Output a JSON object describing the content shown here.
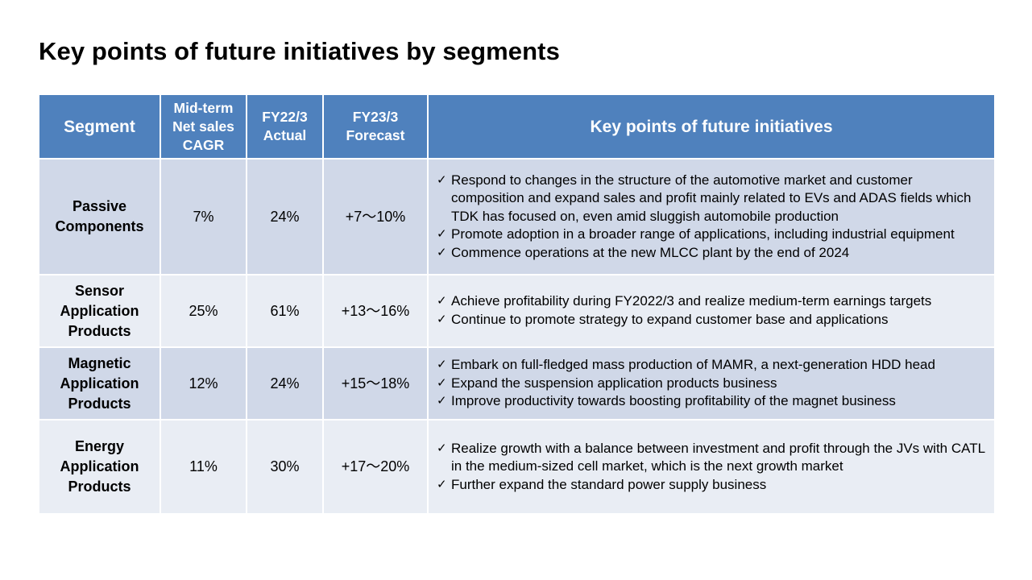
{
  "title": "Key points of future initiatives by segments",
  "table": {
    "headers": {
      "segment": "Segment",
      "cagr": [
        "Mid-term",
        "Net sales",
        "CAGR"
      ],
      "actual": [
        "FY22/3",
        "Actual"
      ],
      "forecast": [
        "FY23/3",
        "Forecast"
      ],
      "initiatives": "Key points of future initiatives"
    },
    "rows": [
      {
        "segment": [
          "Passive",
          "Components"
        ],
        "cagr": "7%",
        "actual": "24%",
        "forecast": "+7～10%",
        "points": [
          "Respond to changes in the structure of the automotive market and customer composition and expand sales and profit mainly related to EVs and ADAS fields which TDK has focused on, even amid sluggish automobile production",
          "Promote adoption in a broader range of applications, including industrial equipment",
          "Commence operations at the new MLCC plant by the end of 2024"
        ]
      },
      {
        "segment": [
          "Sensor",
          "Application",
          "Products"
        ],
        "cagr": "25%",
        "actual": "61%",
        "forecast": "+13～16%",
        "points": [
          "Achieve profitability during FY2022/3 and realize medium-term earnings targets",
          "Continue to promote strategy to expand customer base and applications"
        ]
      },
      {
        "segment": [
          "Magnetic",
          "Application",
          "Products"
        ],
        "cagr": "12%",
        "actual": "24%",
        "forecast": "+15～18%",
        "points": [
          "Embark on full-fledged mass production of MAMR, a next-generation HDD head",
          "Expand the suspension application products business",
          "Improve productivity towards boosting profitability of the magnet business"
        ]
      },
      {
        "segment": [
          "Energy",
          "Application",
          "Products"
        ],
        "cagr": "11%",
        "actual": "30%",
        "forecast": "+17～20%",
        "points": [
          "Realize growth with a balance between investment and profit through the JVs with CATL in the medium-sized cell market, which is the next growth market",
          "Further expand the standard power supply business"
        ]
      }
    ]
  },
  "icons": {
    "bullet": "check-icon",
    "bullet_glyph": "✓"
  }
}
